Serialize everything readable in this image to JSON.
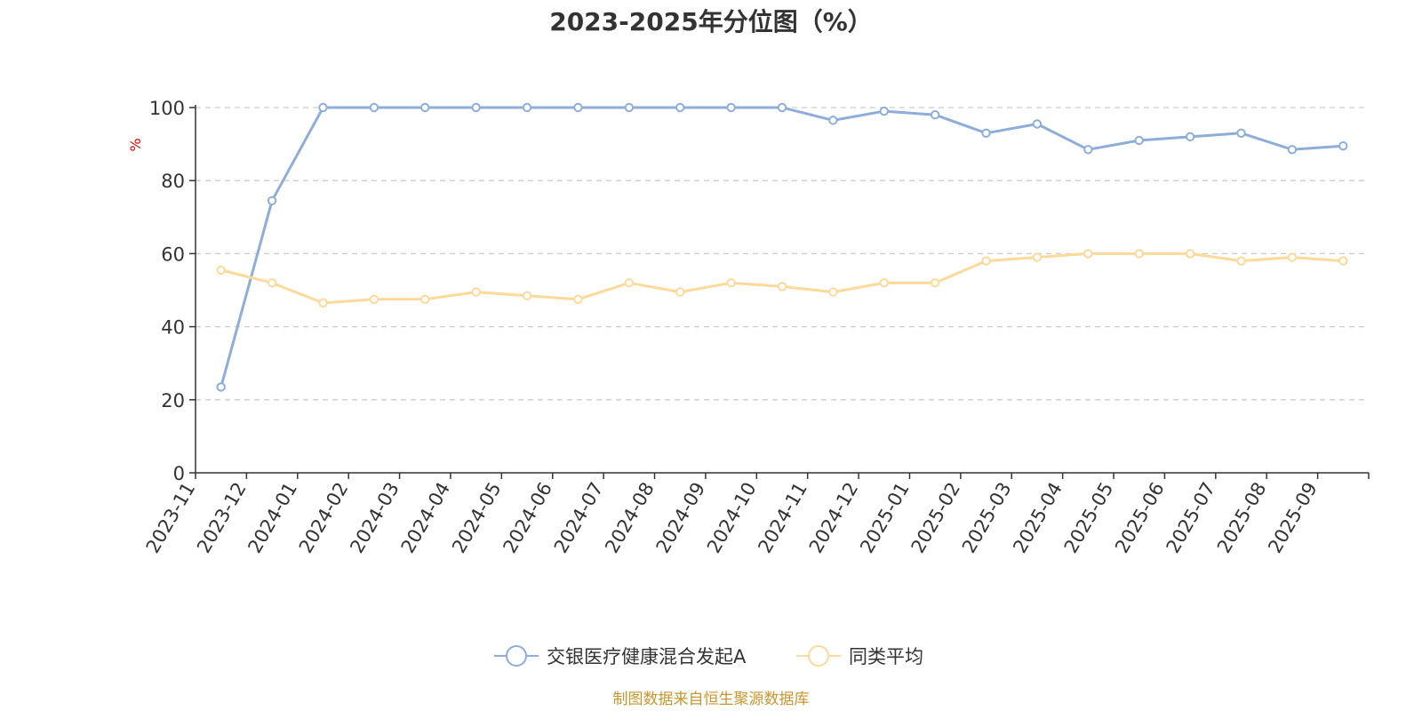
{
  "chart_data": {
    "type": "line",
    "title": "2023-2025年分位图（%）",
    "ylabel": "%",
    "xlabel": "",
    "ylim": [
      0,
      100
    ],
    "yticks": [
      0,
      20,
      40,
      60,
      80,
      100
    ],
    "grid": true,
    "legend_position": "bottom",
    "categories": [
      "2023-11",
      "2023-12",
      "2024-01",
      "2024-02",
      "2024-03",
      "2024-04",
      "2024-05",
      "2024-06",
      "2024-07",
      "2024-08",
      "2024-09",
      "2024-10",
      "2024-11",
      "2024-12",
      "2025-01",
      "2025-02",
      "2025-03",
      "2025-04",
      "2025-05",
      "2025-06",
      "2025-07",
      "2025-08",
      "2025-09"
    ],
    "series": [
      {
        "name": "交银医疗健康混合发起A",
        "color": "#8eadda",
        "values": [
          23.5,
          74.5,
          100,
          100,
          100,
          100,
          100,
          100,
          100,
          100,
          100,
          100,
          96.5,
          99,
          98,
          93,
          95.5,
          88.5,
          91,
          92,
          93,
          88.5,
          89.5
        ]
      },
      {
        "name": "同类平均",
        "color": "#fdd99a",
        "values": [
          55.5,
          52,
          46.5,
          47.5,
          47.5,
          49.5,
          48.5,
          47.5,
          52,
          49.5,
          52,
          51,
          49.5,
          52,
          52,
          58,
          59,
          60,
          60,
          60,
          58,
          59,
          58
        ]
      }
    ]
  },
  "source_text": "制图数据来自恒生聚源数据库"
}
